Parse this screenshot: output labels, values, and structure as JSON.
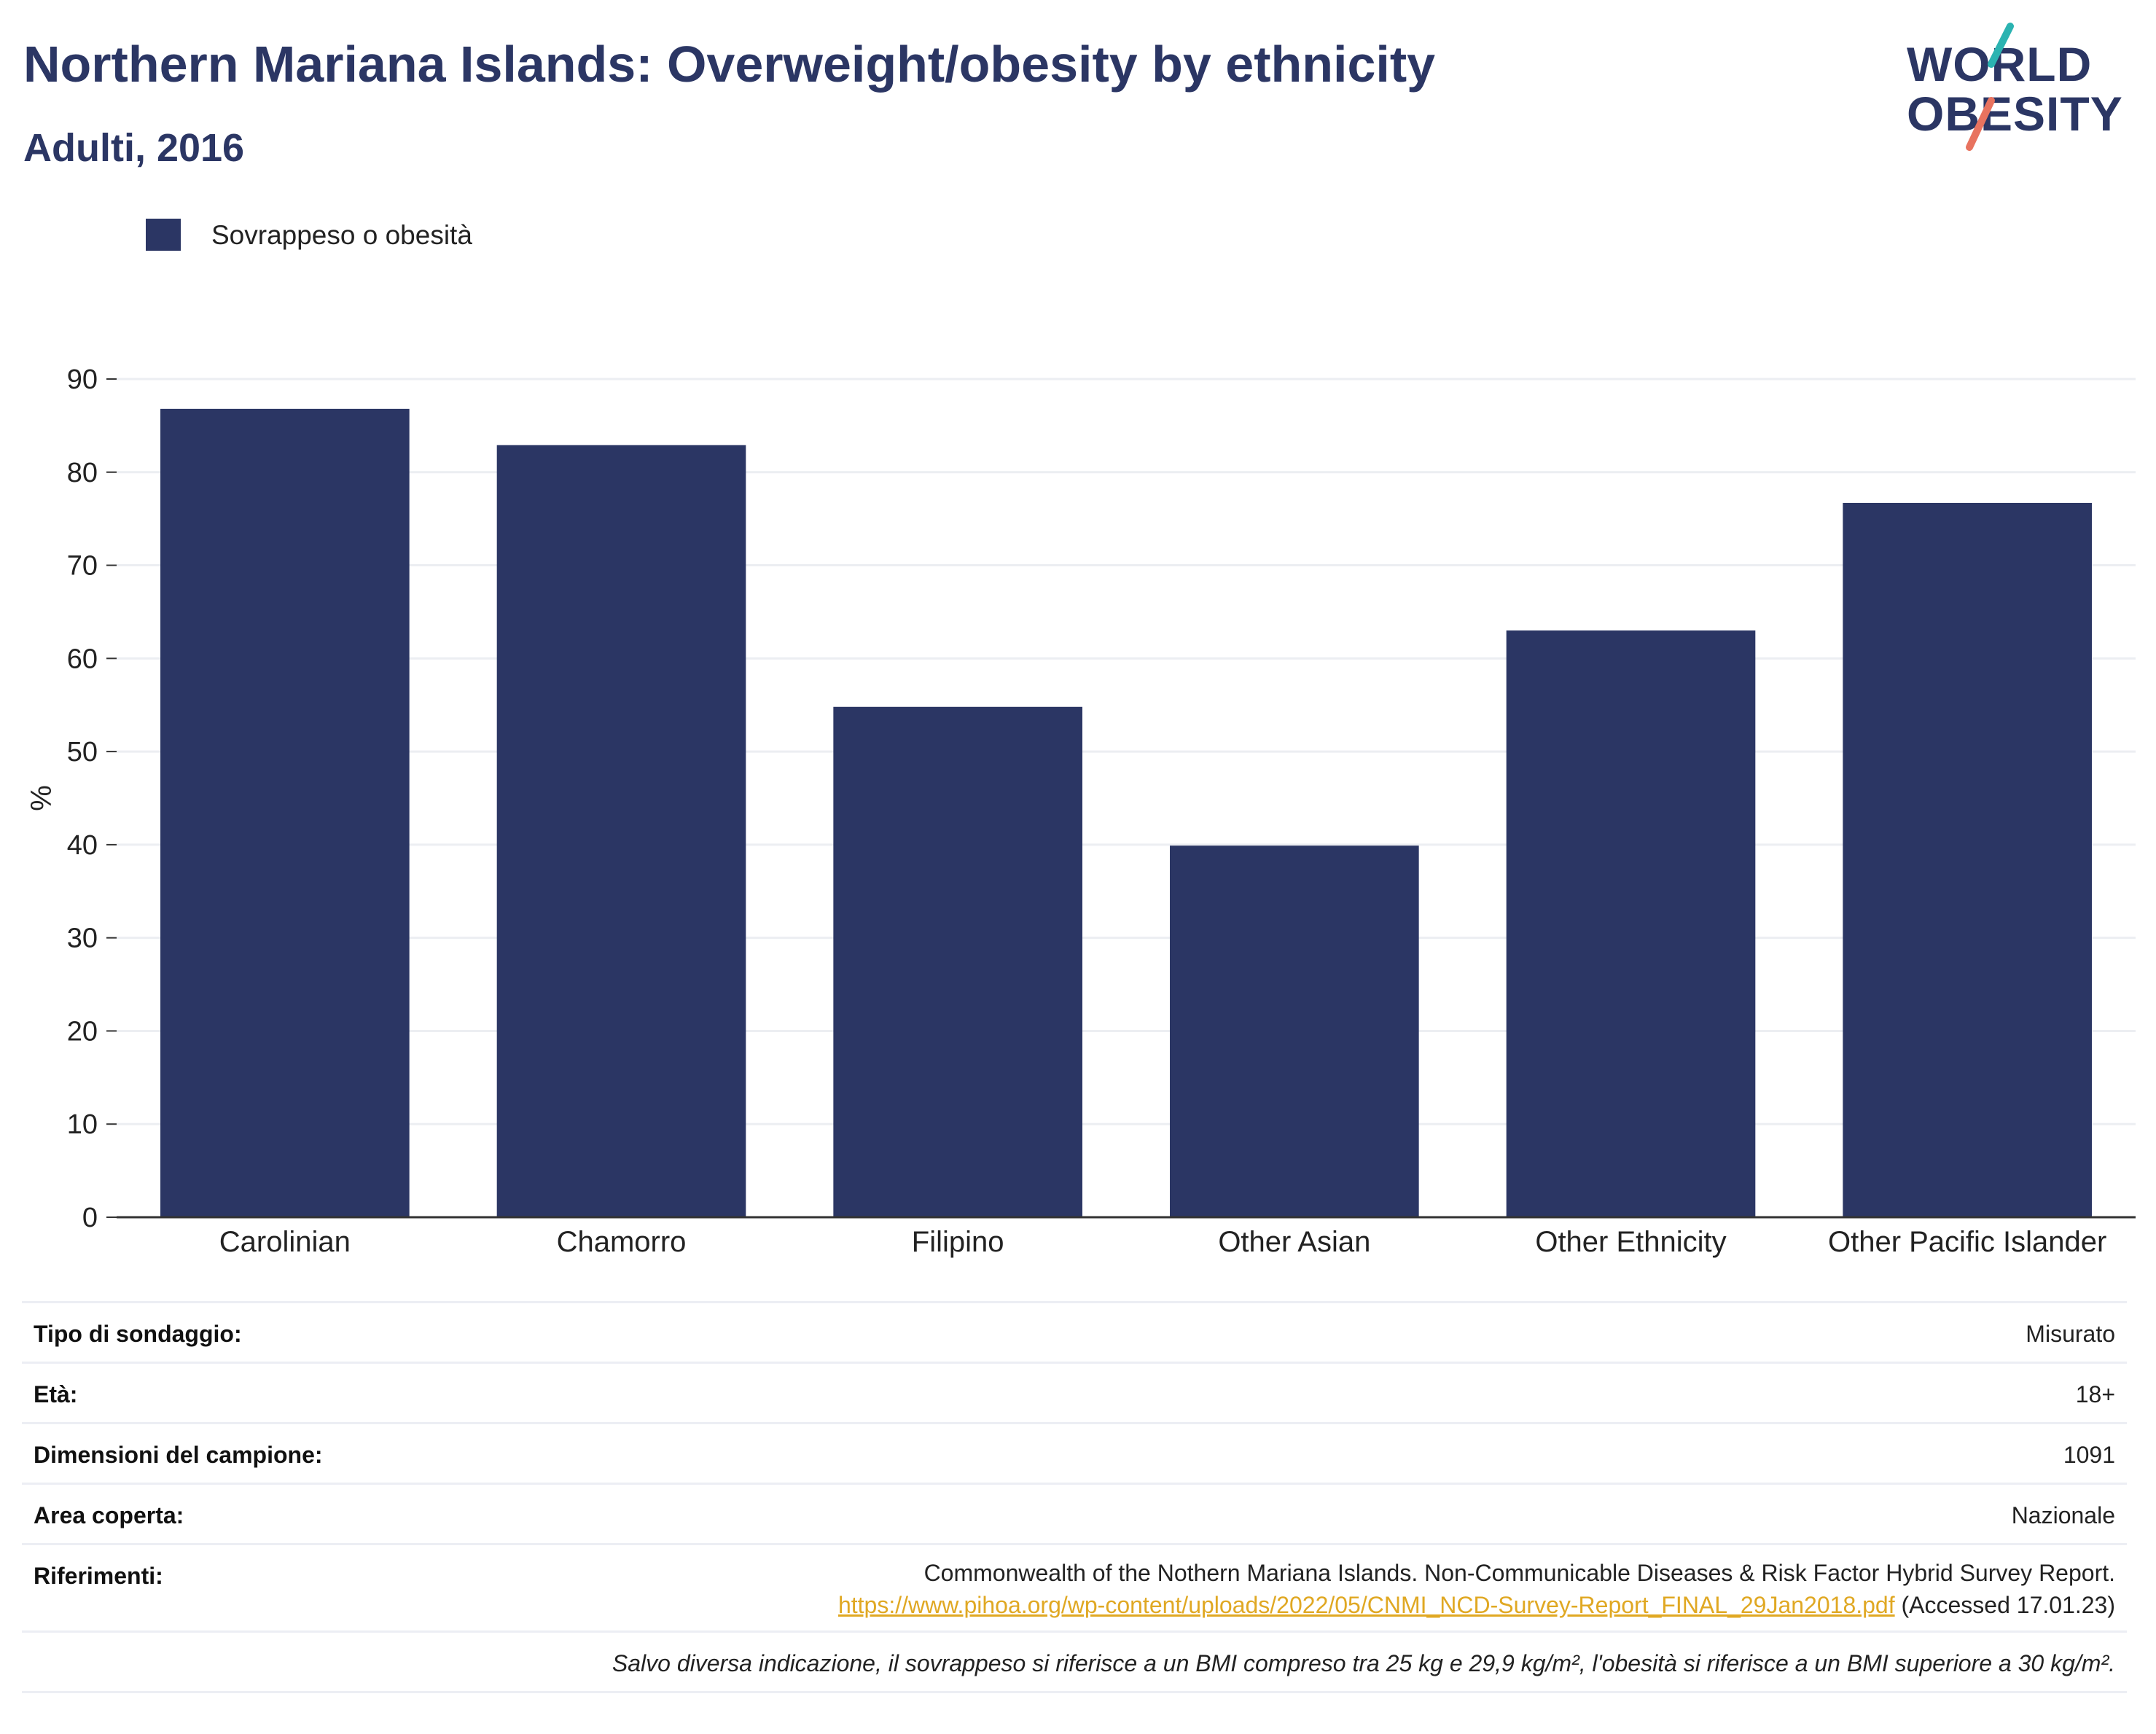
{
  "title": "Northern Mariana Islands: Overweight/obesity by ethnicity",
  "subtitle": "Adulti, 2016",
  "logo": {
    "line1": "WORLD",
    "line2": "OBESITY",
    "accent_teal": "#2bb3b1",
    "accent_coral": "#e8735f"
  },
  "legend": {
    "label": "Sovrappeso o obesità",
    "color": "#2b3664"
  },
  "chart_data": {
    "type": "bar",
    "title": "Northern Mariana Islands: Overweight/obesity by ethnicity",
    "subtitle": "Adulti, 2016",
    "xlabel": "",
    "ylabel": "%",
    "ylim": [
      0,
      90
    ],
    "yticks": [
      0,
      10,
      20,
      30,
      40,
      50,
      60,
      70,
      80,
      90
    ],
    "grid": true,
    "legend_position": "top-left",
    "categories": [
      "Carolinian",
      "Chamorro",
      "Filipino",
      "Other Asian",
      "Other Ethnicity",
      "Other Pacific Islander"
    ],
    "series": [
      {
        "name": "Sovrappeso o obesità",
        "color": "#2b3664",
        "values": [
          86.8,
          82.9,
          54.8,
          39.9,
          63.0,
          76.7
        ]
      }
    ]
  },
  "info": {
    "survey_type": {
      "label": "Tipo di sondaggio:",
      "value": "Misurato"
    },
    "age": {
      "label": "Età:",
      "value": "18+"
    },
    "sample_size": {
      "label": "Dimensioni del campione:",
      "value": "1091"
    },
    "area": {
      "label": "Area coperta:",
      "value": "Nazionale"
    },
    "references": {
      "label": "Riferimenti:",
      "text": "Commonwealth of the Nothern Mariana Islands. Non-Communicable Diseases & Risk Factor Hybrid Survey Report.",
      "link": "https://www.pihoa.org/wp-content/uploads/2022/05/CNMI_NCD-Survey-Report_FINAL_29Jan2018.pdf",
      "accessed": "(Accessed 17.01.23)"
    },
    "note": "Salvo diversa indicazione, il sovrappeso si riferisce a un BMI compreso tra 25 kg e 29,9 kg/m², l'obesità si riferisce a un BMI superiore a 30 kg/m²."
  }
}
